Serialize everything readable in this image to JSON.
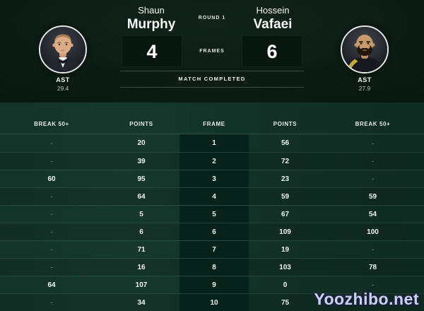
{
  "scoreboard": {
    "round_label": "ROUND 1",
    "frames_label": "FRAMES",
    "status": "MATCH COMPLETED",
    "player_left": {
      "first_name": "Shaun",
      "last_name": "Murphy",
      "score": "4",
      "ast_label": "AST",
      "ast_value": "29.4"
    },
    "player_right": {
      "first_name": "Hossein",
      "last_name": "Vafaei",
      "score": "6",
      "ast_label": "AST",
      "ast_value": "27.9"
    }
  },
  "frames_table": {
    "headers": [
      "BREAK 50+",
      "POINTS",
      "FRAME",
      "POINTS",
      "BREAK 50+"
    ],
    "rows": [
      [
        "-",
        "20",
        "1",
        "56",
        "-"
      ],
      [
        "-",
        "39",
        "2",
        "72",
        "-"
      ],
      [
        "60",
        "95",
        "3",
        "23",
        "-"
      ],
      [
        "-",
        "64",
        "4",
        "59",
        "59"
      ],
      [
        "-",
        "5",
        "5",
        "67",
        "54"
      ],
      [
        "-",
        "6",
        "6",
        "109",
        "100"
      ],
      [
        "-",
        "71",
        "7",
        "19",
        "-"
      ],
      [
        "-",
        "16",
        "8",
        "103",
        "78"
      ],
      [
        "64",
        "107",
        "9",
        "0",
        "-"
      ],
      [
        "-",
        "34",
        "10",
        "75",
        "-"
      ]
    ]
  },
  "watermark": "Yoozhibo.net",
  "colors": {
    "top_background": "#0b1a13",
    "table_background": "#123026",
    "frame_column_band": "#07221a",
    "score_box": "#081811",
    "watermark_fill": "#c9d3f1",
    "watermark_outline": "#1a2137"
  }
}
